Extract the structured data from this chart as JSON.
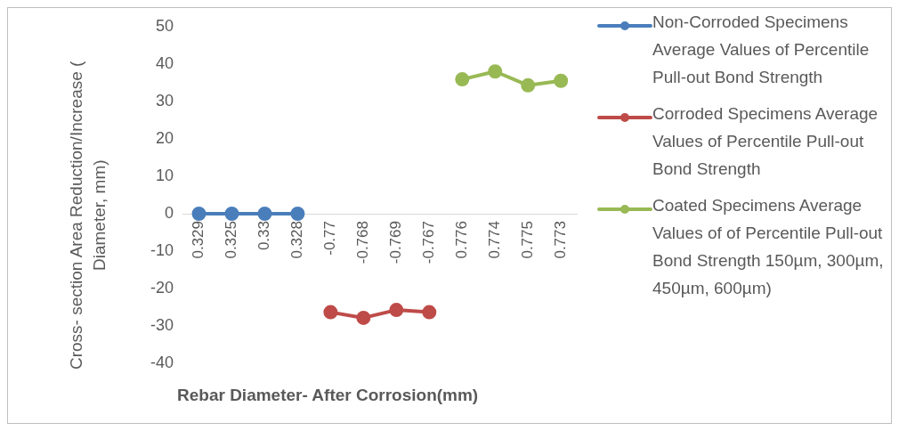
{
  "chart_data": {
    "type": "line",
    "xlabel": "Rebar Diameter- After Corrosion(mm)",
    "ylabel": "Cross- section Area Reduction/Increase ( Diameter, mm)",
    "categories": [
      "0.329",
      "0.325",
      "0.33",
      "0.328",
      "-0.77",
      "-0.768",
      "-0.769",
      "-0.767",
      "0.776",
      "0.774",
      "0.775",
      "0.773"
    ],
    "series": [
      {
        "name": "Non-Corroded Specimens Average Values of  Percentile Pull-out Bond Strength",
        "color": "#4a7ebb",
        "values": [
          0,
          0,
          0,
          0,
          null,
          null,
          null,
          null,
          null,
          null,
          null,
          null
        ]
      },
      {
        "name": "Corroded Specimens Average Values of Percentile Pull-out Bond Strength",
        "color": "#be4b48",
        "values": [
          null,
          null,
          null,
          null,
          -26.3,
          -27.8,
          -25.7,
          -26.3,
          null,
          null,
          null,
          null
        ]
      },
      {
        "name": "Coated Specimens Average Values of of Percentile Pull-out Bond Strength  150µm, 300µm, 450µm, 600µm)",
        "color": "#98b954",
        "values": [
          null,
          null,
          null,
          null,
          null,
          null,
          null,
          null,
          35.9,
          38.0,
          34.3,
          35.5
        ]
      }
    ],
    "ylim": [
      -40,
      50
    ],
    "yticks": [
      -40,
      -30,
      -20,
      -10,
      0,
      10,
      20,
      30,
      40,
      50
    ],
    "grid": false,
    "legend": "right",
    "marker": "circle",
    "line_style": "solid"
  }
}
